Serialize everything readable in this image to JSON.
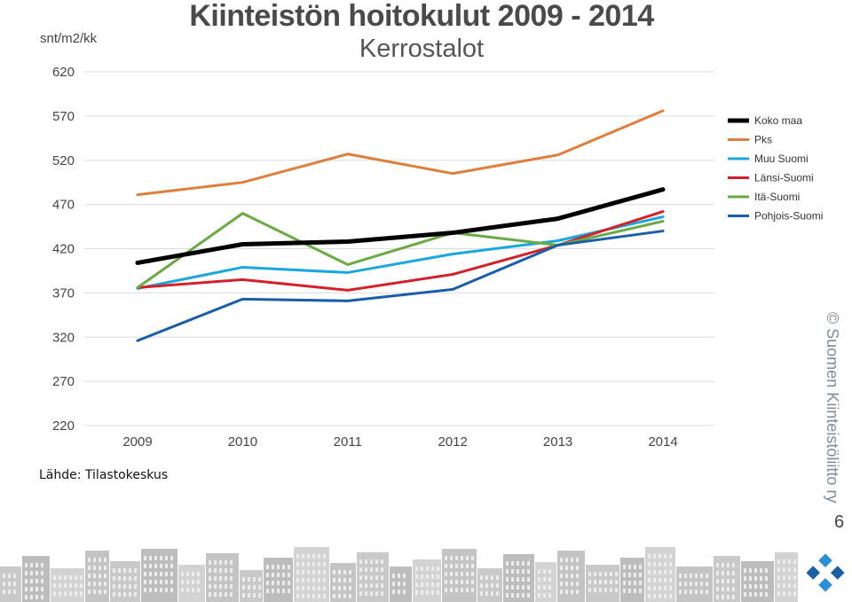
{
  "header": {
    "title": "Kiinteistön hoitokulut 2009 - 2014",
    "subtitle": "Kerrostalot",
    "unit": "snt/m2/kk"
  },
  "footer": {
    "source": "Lähde: Tilastokeskus",
    "copyright": "© Suomen Kiinteistöliitto ry",
    "page_number": "6"
  },
  "chart_data": {
    "type": "line",
    "title": "Kiinteistön hoitokulut 2009 - 2014",
    "subtitle": "Kerrostalot",
    "ylabel": "snt/m2/kk",
    "xlabel": "",
    "categories": [
      "2009",
      "2010",
      "2011",
      "2012",
      "2013",
      "2014"
    ],
    "yticks": [
      220,
      270,
      320,
      370,
      420,
      470,
      520,
      570,
      620
    ],
    "ylim": [
      220,
      620
    ],
    "grid": true,
    "legend": "right",
    "series": [
      {
        "name": "Koko maa",
        "color": "#000000",
        "width": 5,
        "values": [
          404,
          425,
          428,
          438,
          454,
          487
        ]
      },
      {
        "name": "Pks",
        "color": "#e07f3b",
        "width": 3,
        "values": [
          481,
          495,
          527,
          505,
          526,
          576
        ]
      },
      {
        "name": "Muu Suomi",
        "color": "#1aa7e0",
        "width": 3,
        "values": [
          375,
          399,
          393,
          414,
          429,
          456
        ]
      },
      {
        "name": "Länsi-Suomi",
        "color": "#d42028",
        "width": 3,
        "values": [
          376,
          385,
          373,
          391,
          424,
          462
        ]
      },
      {
        "name": "Itä-Suomi",
        "color": "#6aaa44",
        "width": 3,
        "values": [
          376,
          460,
          402,
          438,
          424,
          451
        ]
      },
      {
        "name": "Pohjois-Suomi",
        "color": "#1a5ea8",
        "width": 3,
        "values": [
          316,
          363,
          361,
          374,
          424,
          440
        ]
      }
    ]
  }
}
